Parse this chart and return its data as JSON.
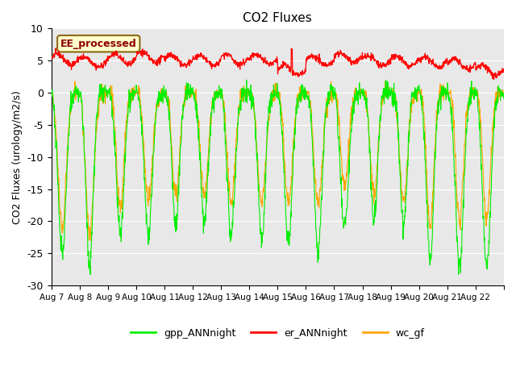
{
  "title": "CO2 Fluxes",
  "ylabel": "CO2 Fluxes (urology/m2/s)",
  "ylim": [
    -30,
    10
  ],
  "yticks": [
    -30,
    -25,
    -20,
    -15,
    -10,
    -5,
    0,
    5,
    10
  ],
  "x_labels": [
    "Aug 7",
    "Aug 8",
    "Aug 9",
    "Aug 10",
    "Aug 11",
    "Aug 12",
    "Aug 13",
    "Aug 14",
    "Aug 15",
    "Aug 16",
    "Aug 17",
    "Aug 18",
    "Aug 19",
    "Aug 20",
    "Aug 21",
    "Aug 22"
  ],
  "annotation_text": "EE_processed",
  "annotation_color": "#8B0000",
  "annotation_bg": "#FFFFCC",
  "annotation_border": "#8B6914",
  "bg_color": "#E8E8E8",
  "line_colors": {
    "gpp": "#00EE00",
    "er": "#FF0000",
    "wc": "#FFA500"
  },
  "legend_labels": [
    "gpp_ANNnight",
    "er_ANNnight",
    "wc_gf"
  ],
  "n_days": 16,
  "points_per_day": 96,
  "seed": 42
}
